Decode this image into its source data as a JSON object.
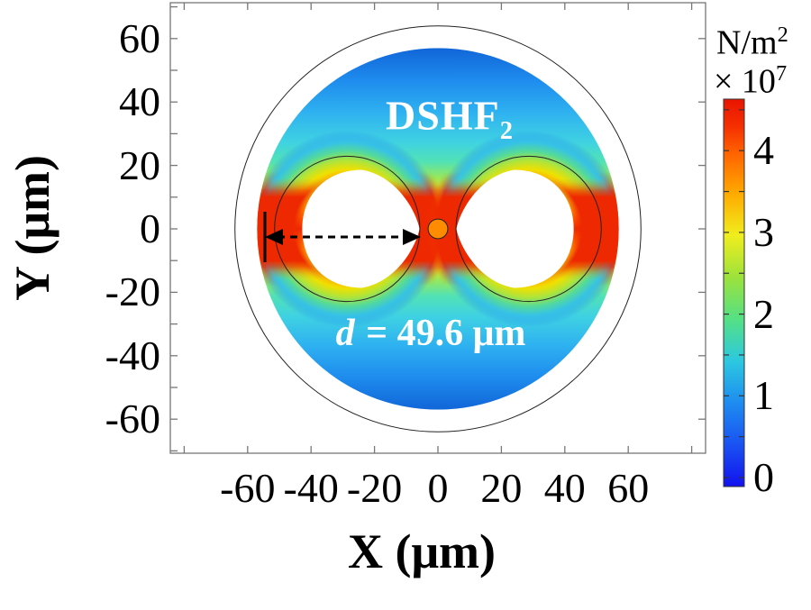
{
  "figure": {
    "x_axis": {
      "label": "X (μm)",
      "tick_labels": [
        "-60",
        "-40",
        "-20",
        "0",
        "20",
        "40",
        "60"
      ],
      "tick_values": [
        -60,
        -40,
        -20,
        0,
        20,
        40,
        60
      ]
    },
    "y_axis": {
      "label": "Y (μm)",
      "tick_labels": [
        "60",
        "40",
        "20",
        "0",
        "-20",
        "-40",
        "-60"
      ],
      "tick_values": [
        60,
        40,
        20,
        0,
        -20,
        -40,
        -60
      ]
    },
    "colorbar": {
      "unit_base": "N/m",
      "unit_exponent": "2",
      "multiplier_base": "× 10",
      "multiplier_exponent": "7",
      "tick_labels": [
        "4",
        "3",
        "2",
        "1",
        "0"
      ],
      "tick_values": [
        4,
        3,
        2,
        1,
        0
      ]
    },
    "annotations": {
      "fiber_label_base": "DSHF",
      "fiber_label_sub": "2",
      "distance_var": "d",
      "distance_rest": " = 49.6 μm"
    }
  },
  "chart_data": {
    "type": "heatmap",
    "title": "Stress / force distribution over DSHF2 fiber cross-section",
    "xlabel": "X (μm)",
    "ylabel": "Y (μm)",
    "unit": "N/m2 × 10^7",
    "x": {
      "range": [
        -84.5,
        84.5
      ],
      "labeled_ticks": [
        -60,
        -40,
        -20,
        0,
        20,
        40,
        60
      ]
    },
    "y": {
      "range": [
        -71,
        71
      ],
      "labeled_ticks": [
        60,
        40,
        20,
        0,
        -20,
        -40,
        -60
      ]
    },
    "value_range_e7": [
      0,
      4.63
    ],
    "colorbar_labeled_ticks": [
      0,
      1,
      2,
      3,
      4
    ],
    "colormap": "jet",
    "colormap_stops": [
      {
        "v": 0.0,
        "c": "#1212ee"
      },
      {
        "v": 0.5,
        "c": "#1a52f2"
      },
      {
        "v": 1.0,
        "c": "#1e8cf0"
      },
      {
        "v": 1.5,
        "c": "#2cc8e0"
      },
      {
        "v": 2.0,
        "c": "#55e085"
      },
      {
        "v": 2.5,
        "c": "#9ce23c"
      },
      {
        "v": 3.0,
        "c": "#f0ee1e"
      },
      {
        "v": 3.5,
        "c": "#ffaa00"
      },
      {
        "v": 4.0,
        "c": "#ff6000"
      },
      {
        "v": 4.3,
        "c": "#f53000"
      },
      {
        "v": 4.63,
        "c": "#e81400"
      }
    ],
    "geometry_um": {
      "outer_boundary_radius": 64,
      "stress_region_radius": 57,
      "side_hole_center_x": 28.6,
      "side_hole_outline_radius": 22.9,
      "core_radius": 3.1,
      "annotated_distance_d": 49.6
    },
    "frame_ticks": {
      "x_step": 20,
      "x_range": [
        -80,
        80
      ],
      "y_left_step": 10,
      "y_left_range": [
        -70,
        70
      ],
      "y_right_step": 20,
      "y_right_range": [
        -60,
        60
      ]
    },
    "field_pattern": "Low stress (blue, ~0.5-1e7) at top and bottom of cladding; stress rises toward the horizontal midline; red maxima (~4.5e7) at the outer flanks of both air holes and in the waist between the holes around the core; yellow-green halos wrap above and below each hole; white = air holes (no material)."
  },
  "layout_colors": {
    "frame": "#777777",
    "outline": "#222222",
    "core_fill": "#ff8c00",
    "annotation_text": "#ffffff"
  }
}
